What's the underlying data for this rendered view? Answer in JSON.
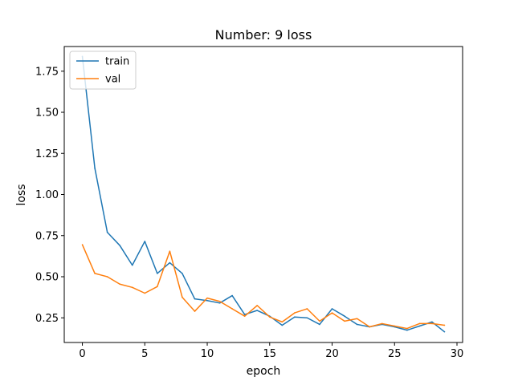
{
  "chart_data": {
    "type": "line",
    "title": "Number: 9 loss",
    "xlabel": "epoch",
    "ylabel": "loss",
    "xlim": [
      -1.45,
      30.45
    ],
    "ylim": [
      0.1,
      1.9
    ],
    "x_ticks": [
      0,
      5,
      10,
      15,
      20,
      25,
      30
    ],
    "y_ticks": [
      0.25,
      0.5,
      0.75,
      1.0,
      1.25,
      1.5,
      1.75
    ],
    "y_tick_labels": [
      "0.25",
      "0.50",
      "0.75",
      "1.00",
      "1.25",
      "1.50",
      "1.75"
    ],
    "legend_position": "top-left",
    "grid": false,
    "x": [
      0,
      1,
      2,
      3,
      4,
      5,
      6,
      7,
      8,
      9,
      10,
      11,
      12,
      13,
      14,
      15,
      16,
      17,
      18,
      19,
      20,
      21,
      22,
      23,
      24,
      25,
      26,
      27,
      28,
      29
    ],
    "series": [
      {
        "name": "train",
        "color": "#1f77b4",
        "values": [
          1.84,
          1.16,
          0.77,
          0.69,
          0.57,
          0.715,
          0.52,
          0.585,
          0.52,
          0.365,
          0.355,
          0.34,
          0.385,
          0.27,
          0.295,
          0.26,
          0.205,
          0.255,
          0.25,
          0.21,
          0.305,
          0.26,
          0.21,
          0.195,
          0.21,
          0.195,
          0.175,
          0.2,
          0.225,
          0.165
        ]
      },
      {
        "name": "val",
        "color": "#ff7f0e",
        "values": [
          0.695,
          0.52,
          0.5,
          0.455,
          0.435,
          0.4,
          0.44,
          0.655,
          0.375,
          0.29,
          0.37,
          0.35,
          0.305,
          0.26,
          0.325,
          0.255,
          0.225,
          0.28,
          0.305,
          0.23,
          0.28,
          0.23,
          0.245,
          0.195,
          0.215,
          0.2,
          0.185,
          0.215,
          0.215,
          0.205
        ]
      }
    ]
  }
}
